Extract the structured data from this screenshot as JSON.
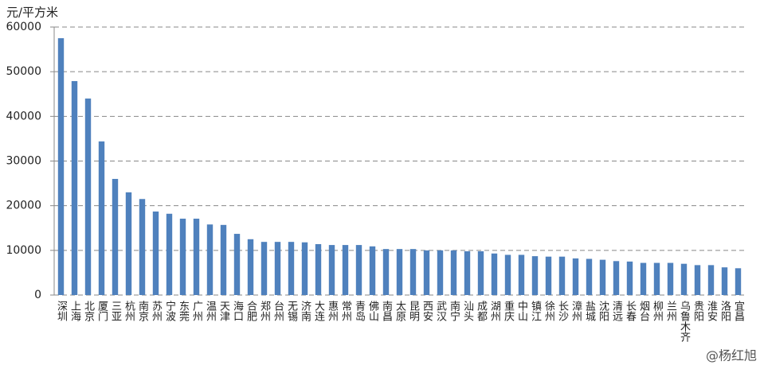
{
  "chart_data": {
    "type": "bar",
    "y_axis_label": "元/平方米",
    "watermark": "@杨红旭",
    "categories": [
      "深圳",
      "上海",
      "北京",
      "厦门",
      "三亚",
      "杭州",
      "南京",
      "苏州",
      "宁波",
      "东莞",
      "广州",
      "温州",
      "天津",
      "海口",
      "合肥",
      "郑州",
      "台州",
      "无锡",
      "济南",
      "大连",
      "惠州",
      "常州",
      "青岛",
      "佛山",
      "南昌",
      "太原",
      "昆明",
      "西安",
      "武汉",
      "南宁",
      "汕头",
      "成都",
      "湖州",
      "重庆",
      "中山",
      "镇江",
      "徐州",
      "长沙",
      "漳州",
      "盐城",
      "沈阳",
      "清远",
      "长春",
      "烟台",
      "柳州",
      "兰州",
      "乌鲁木齐",
      "贵阳",
      "淮安",
      "洛阳",
      "宜昌"
    ],
    "values": [
      57500,
      47900,
      44000,
      34400,
      26000,
      23000,
      21500,
      18700,
      18200,
      17100,
      17100,
      15800,
      15700,
      13700,
      12500,
      11900,
      11900,
      11900,
      11800,
      11400,
      11200,
      11200,
      11200,
      10900,
      10300,
      10300,
      10300,
      10000,
      10000,
      10000,
      9800,
      9800,
      9300,
      9000,
      9000,
      8700,
      8600,
      8600,
      8200,
      8100,
      7900,
      7600,
      7500,
      7200,
      7200,
      7200,
      7000,
      6700,
      6700,
      6200,
      6000
    ],
    "color": "#4f81bd",
    "ylim": [
      0,
      60000
    ],
    "yticks": [
      0,
      10000,
      20000,
      30000,
      40000,
      50000,
      60000
    ],
    "grid": true
  }
}
